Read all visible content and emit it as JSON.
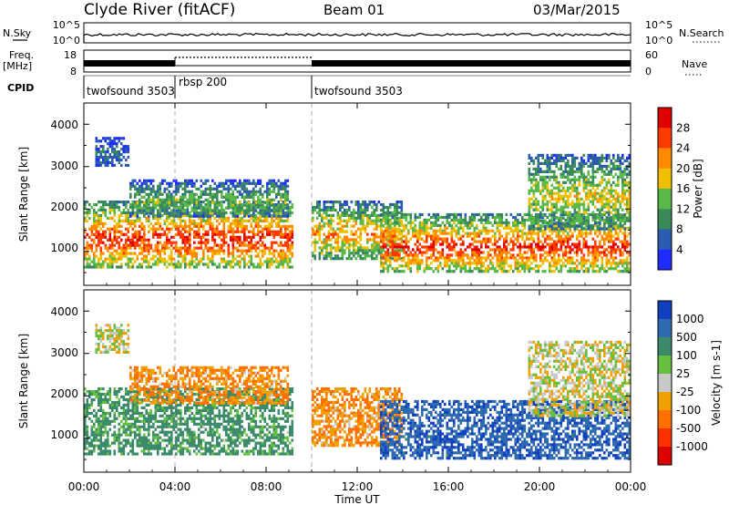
{
  "header": {
    "title": "Clyde River (fitACF)",
    "beam": "Beam 01",
    "date": "03/Mar/2015"
  },
  "noise_panel": {
    "left_label": "N.Sky",
    "right_label": "N.Search",
    "left_ticks": [
      "10^5",
      "10^0"
    ],
    "right_ticks": [
      "10^5",
      "10^0"
    ]
  },
  "freq_panel": {
    "left_label_1": "Freq.",
    "left_label_2": "[MHz]",
    "right_label": "Nave",
    "left_ticks": [
      "18",
      "8"
    ],
    "right_ticks": [
      "60",
      "0"
    ]
  },
  "cpid": {
    "label": "CPID",
    "segments": [
      {
        "name": "twofsound 3503",
        "start_hour": 0,
        "end_hour": 4
      },
      {
        "name": "rbsp 200",
        "start_hour": 4,
        "end_hour": 10
      },
      {
        "name": "twofsound 3503",
        "start_hour": 10,
        "end_hour": 24
      }
    ]
  },
  "x_axis": {
    "label": "Time UT",
    "range_hours": [
      0,
      24
    ],
    "tick_labels": [
      "00:00",
      "04:00",
      "08:00",
      "12:00",
      "16:00",
      "20:00",
      "00:00"
    ]
  },
  "colors": {
    "power_scale": [
      "#1f2cff",
      "#2a5cb0",
      "#3a8a5a",
      "#58b848",
      "#f0c000",
      "#ff8a00",
      "#ff3a00",
      "#e00000"
    ],
    "velocity_scale": [
      "#1040c0",
      "#2e6ab0",
      "#3b8a6a",
      "#66c040",
      "#c8c8c8",
      "#f0a000",
      "#ff7000",
      "#ff3000",
      "#dd0000"
    ]
  },
  "chart_data": [
    {
      "type": "heatmap",
      "panel": "power",
      "ylabel": "Slant Range [km]",
      "ylim": [
        200,
        4500
      ],
      "y_tick_labels": [
        "1000",
        "2000",
        "3000",
        "4000"
      ],
      "colorbar_label": "Power [dB]",
      "colorbar_ticks": [
        "4",
        "8",
        "12",
        "16",
        "20",
        "24",
        "28"
      ],
      "colorbar_range": [
        0,
        32
      ],
      "echo_regions": [
        {
          "t0": 0.0,
          "t1": 9.2,
          "r0": 600,
          "r1": 2200,
          "peak_power": 28
        },
        {
          "t0": 2.0,
          "t1": 9.0,
          "r0": 1800,
          "r1": 2700,
          "peak_power": 14
        },
        {
          "t0": 0.5,
          "t1": 2.0,
          "r0": 3000,
          "r1": 3700,
          "peak_power": 8
        },
        {
          "t0": 10.0,
          "t1": 14.0,
          "r0": 800,
          "r1": 2200,
          "peak_power": 22
        },
        {
          "t0": 13.0,
          "t1": 24.0,
          "r0": 500,
          "r1": 1900,
          "peak_power": 28
        },
        {
          "t0": 19.5,
          "t1": 24.0,
          "r0": 1500,
          "r1": 3300,
          "peak_power": 18
        }
      ]
    },
    {
      "type": "heatmap",
      "panel": "velocity",
      "ylabel": "Slant Range [km]",
      "ylim": [
        200,
        4500
      ],
      "y_tick_labels": [
        "1000",
        "2000",
        "3000",
        "4000"
      ],
      "colorbar_label": "Velocity [m s-1]",
      "colorbar_ticks": [
        "1000",
        "500",
        "100",
        "25",
        "-25",
        "-100",
        "-500",
        "-1000"
      ],
      "colorbar_range": [
        -1000,
        1000
      ],
      "echo_regions": [
        {
          "t0": 0.0,
          "t1": 9.2,
          "r0": 600,
          "r1": 2200,
          "typical_velocity": 150
        },
        {
          "t0": 2.0,
          "t1": 9.0,
          "r0": 1800,
          "r1": 2700,
          "typical_velocity": -100
        },
        {
          "t0": 0.5,
          "t1": 2.0,
          "r0": 3000,
          "r1": 3700,
          "typical_velocity": 0
        },
        {
          "t0": 10.0,
          "t1": 14.0,
          "r0": 800,
          "r1": 2200,
          "typical_velocity": -100
        },
        {
          "t0": 13.0,
          "t1": 24.0,
          "r0": 500,
          "r1": 1900,
          "typical_velocity": 900
        },
        {
          "t0": 19.5,
          "t1": 24.0,
          "r0": 1500,
          "r1": 3300,
          "typical_velocity": 0
        }
      ]
    }
  ]
}
